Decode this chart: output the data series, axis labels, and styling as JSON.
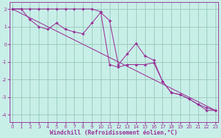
{
  "xlabel": "Windchill (Refroidissement éolien,°C)",
  "bg_color": "#c8eee8",
  "line_color": "#993399",
  "grid_color": "#99ccbb",
  "hours": [
    0,
    1,
    2,
    3,
    4,
    5,
    6,
    7,
    8,
    9,
    10,
    11,
    12,
    13,
    14,
    15,
    16,
    17,
    18,
    19,
    20,
    21,
    22,
    23
  ],
  "line1": [
    2.0,
    2.0,
    1.4,
    1.0,
    0.85,
    1.2,
    0.85,
    0.7,
    0.6,
    1.2,
    1.8,
    1.35,
    -1.15,
    -0.55,
    0.05,
    -0.65,
    -0.9,
    -2.1,
    -2.75,
    -2.85,
    -3.1,
    -3.4,
    -3.6,
    -3.75
  ],
  "line2": [
    2.0,
    2.0,
    2.0,
    2.0,
    2.0,
    2.0,
    2.0,
    2.0,
    2.0,
    2.0,
    1.85,
    -1.15,
    -1.3,
    -1.15,
    -1.15,
    -1.15,
    -1.05,
    -2.1,
    -2.75,
    -2.85,
    -3.1,
    -3.4,
    -3.75,
    -3.75
  ],
  "line3_x": [
    0,
    23
  ],
  "line3_y": [
    2.0,
    -3.75
  ],
  "ylim": [
    -4.4,
    2.4
  ],
  "xlim": [
    -0.3,
    23.3
  ],
  "yticks": [
    2,
    1,
    0,
    -1,
    -2,
    -3,
    -4
  ],
  "xticks": [
    0,
    1,
    2,
    3,
    4,
    5,
    6,
    7,
    8,
    9,
    10,
    11,
    12,
    13,
    14,
    15,
    16,
    17,
    18,
    19,
    20,
    21,
    22,
    23
  ],
  "tick_fontsize": 5.0,
  "xlabel_fontsize": 6.0,
  "marker_size": 2.0,
  "lw": 0.8
}
